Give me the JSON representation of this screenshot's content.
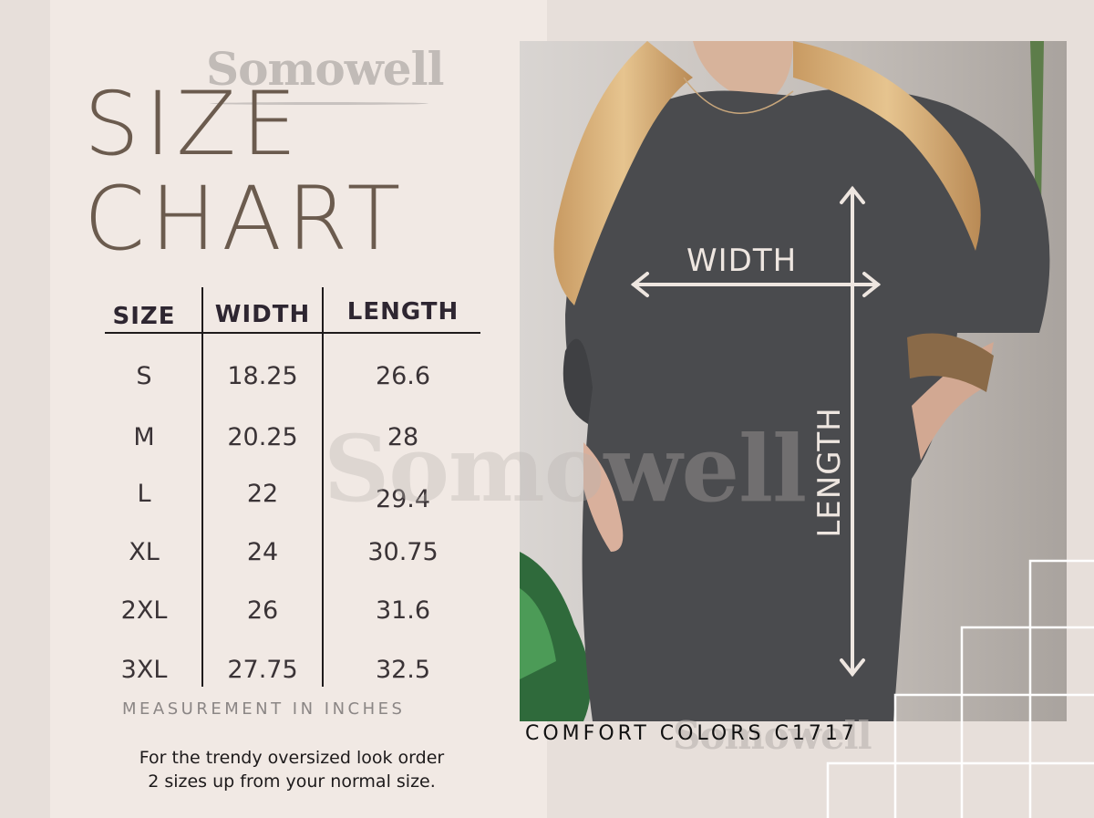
{
  "watermark": "Somowell",
  "title": {
    "line1": "SIZE",
    "line2": "CHART"
  },
  "table": {
    "headers": [
      "SIZE",
      "WIDTH",
      "LENGTH"
    ],
    "rows": [
      [
        "S",
        "18.25",
        "26.6"
      ],
      [
        "M",
        "20.25",
        "28"
      ],
      [
        "L",
        "22",
        "29.4"
      ],
      [
        "XL",
        "24",
        "30.75"
      ],
      [
        "2XL",
        "26",
        "31.6"
      ],
      [
        "3XL",
        "27.75",
        "32.5"
      ]
    ]
  },
  "unit_note": "MEASUREMENT IN INCHES",
  "fit_note": {
    "line1": "For the trendy oversized look order",
    "line2": "2 sizes up from your normal size."
  },
  "photo": {
    "width_label": "WIDTH",
    "length_label": "LENGTH"
  },
  "brand_label": "COMFORT COLORS C1717",
  "colors": {
    "background": "#e7dfda",
    "panel": "#f1e9e4",
    "title": "#6b5b4e",
    "table_text": "#2e2631",
    "shirt": "#4a4b4e",
    "arrow": "#eee6e0"
  }
}
